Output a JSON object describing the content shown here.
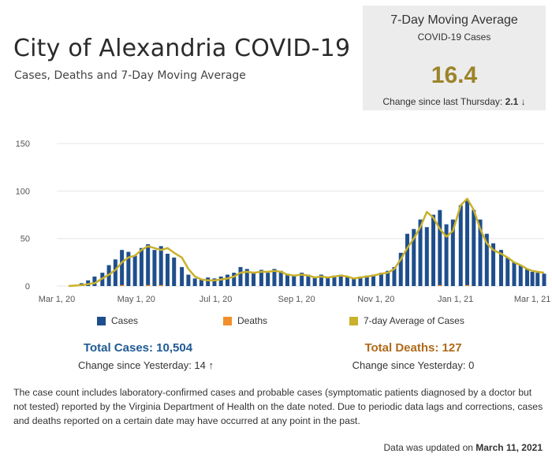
{
  "header": {
    "title": "City of Alexandria COVID-19",
    "subtitle": "Cases, Deaths  and 7-Day Moving Average"
  },
  "kpi": {
    "title": "7-Day Moving Average",
    "subtitle": "COVID-19 Cases",
    "value": "16.4",
    "change_label": "Change since last Thursday:",
    "change_value": "2.1",
    "change_arrow": "↓"
  },
  "legend": {
    "cases": "Cases",
    "deaths": "Deaths",
    "avg": "7-day Average of Cases"
  },
  "totals": {
    "cases_label": "Total Cases: 10,504",
    "cases_change": "Change since Yesterday: 14",
    "cases_arrow": "↑",
    "deaths_label": "Total Deaths: 127",
    "deaths_change": "Change since Yesterday: 0"
  },
  "footnote": "The case count includes laboratory-confirmed cases and probable cases (symptomatic patients diagnosed by a doctor but not tested) reported by the Virginia Department of Health on the date noted. Due to periodic data lags and corrections, cases and deaths reported on a certain date may have occurred at any point in the past.",
  "updated": {
    "label": "Data was updated on",
    "date": "March 11, 2021"
  },
  "colors": {
    "cases": "#1f4e8c",
    "deaths": "#f28e2b",
    "avg": "#c9b12b",
    "kpi_value": "#9c8429",
    "cases_total": "#1f5a94",
    "deaths_total": "#b06a1a",
    "raw_bar": "#c8c8c8"
  },
  "chart_data": {
    "type": "bar",
    "x_type": "date",
    "x_start": "2020-03-01",
    "x_end": "2021-03-10",
    "x_ticks": [
      {
        "date": "2020-03-01",
        "label": "Mar 1, 20"
      },
      {
        "date": "2020-05-01",
        "label": "May 1, 20"
      },
      {
        "date": "2020-07-01",
        "label": "Jul 1, 20"
      },
      {
        "date": "2020-09-01",
        "label": "Sep 1, 20"
      },
      {
        "date": "2020-11-01",
        "label": "Nov 1, 20"
      },
      {
        "date": "2021-01-01",
        "label": "Jan 1, 21"
      },
      {
        "date": "2021-03-01",
        "label": "Mar 1, 21"
      }
    ],
    "ylim": [
      0,
      170
    ],
    "y_ticks": [
      0,
      50,
      100,
      150
    ],
    "grid": true,
    "legend_position": "bottom",
    "series": [
      {
        "name": "Cases",
        "kind": "bar",
        "points": [
          [
            "2020-03-15",
            1
          ],
          [
            "2020-03-20",
            3
          ],
          [
            "2020-03-25",
            6
          ],
          [
            "2020-03-30",
            10
          ],
          [
            "2020-04-05",
            14
          ],
          [
            "2020-04-10",
            22
          ],
          [
            "2020-04-15",
            28
          ],
          [
            "2020-04-20",
            38
          ],
          [
            "2020-04-25",
            36
          ],
          [
            "2020-04-30",
            32
          ],
          [
            "2020-05-05",
            40
          ],
          [
            "2020-05-10",
            44
          ],
          [
            "2020-05-15",
            38
          ],
          [
            "2020-05-20",
            42
          ],
          [
            "2020-05-25",
            34
          ],
          [
            "2020-05-30",
            30
          ],
          [
            "2020-06-05",
            20
          ],
          [
            "2020-06-10",
            12
          ],
          [
            "2020-06-15",
            8
          ],
          [
            "2020-06-20",
            7
          ],
          [
            "2020-06-25",
            9
          ],
          [
            "2020-06-30",
            8
          ],
          [
            "2020-07-05",
            10
          ],
          [
            "2020-07-10",
            12
          ],
          [
            "2020-07-15",
            14
          ],
          [
            "2020-07-20",
            20
          ],
          [
            "2020-07-25",
            18
          ],
          [
            "2020-07-30",
            15
          ],
          [
            "2020-08-05",
            17
          ],
          [
            "2020-08-10",
            14
          ],
          [
            "2020-08-15",
            18
          ],
          [
            "2020-08-20",
            16
          ],
          [
            "2020-08-25",
            13
          ],
          [
            "2020-08-30",
            12
          ],
          [
            "2020-09-05",
            14
          ],
          [
            "2020-09-10",
            12
          ],
          [
            "2020-09-15",
            10
          ],
          [
            "2020-09-20",
            12
          ],
          [
            "2020-09-25",
            10
          ],
          [
            "2020-09-30",
            11
          ],
          [
            "2020-10-05",
            12
          ],
          [
            "2020-10-10",
            10
          ],
          [
            "2020-10-15",
            9
          ],
          [
            "2020-10-20",
            10
          ],
          [
            "2020-10-25",
            11
          ],
          [
            "2020-10-30",
            12
          ],
          [
            "2020-11-05",
            14
          ],
          [
            "2020-11-10",
            16
          ],
          [
            "2020-11-15",
            20
          ],
          [
            "2020-11-20",
            35
          ],
          [
            "2020-11-25",
            55
          ],
          [
            "2020-11-30",
            60
          ],
          [
            "2020-12-05",
            70
          ],
          [
            "2020-12-10",
            62
          ],
          [
            "2020-12-15",
            75
          ],
          [
            "2020-12-20",
            80
          ],
          [
            "2020-12-25",
            65
          ],
          [
            "2020-12-30",
            70
          ],
          [
            "2021-01-05",
            85
          ],
          [
            "2021-01-10",
            90
          ],
          [
            "2021-01-15",
            80
          ],
          [
            "2021-01-20",
            70
          ],
          [
            "2021-01-25",
            55
          ],
          [
            "2021-01-30",
            45
          ],
          [
            "2021-02-05",
            38
          ],
          [
            "2021-02-10",
            30
          ],
          [
            "2021-02-15",
            25
          ],
          [
            "2021-02-20",
            22
          ],
          [
            "2021-02-25",
            18
          ],
          [
            "2021-03-01",
            15
          ],
          [
            "2021-03-05",
            14
          ],
          [
            "2021-03-10",
            13
          ]
        ]
      },
      {
        "name": "Deaths",
        "kind": "bar",
        "points": [
          [
            "2020-04-20",
            1
          ],
          [
            "2020-05-10",
            1
          ],
          [
            "2020-05-20",
            1
          ],
          [
            "2020-12-20",
            1
          ],
          [
            "2021-01-10",
            1
          ]
        ]
      },
      {
        "name": "7-day Average of Cases",
        "kind": "line",
        "points": [
          [
            "2020-03-10",
            0
          ],
          [
            "2020-03-20",
            1
          ],
          [
            "2020-03-30",
            3
          ],
          [
            "2020-04-05",
            8
          ],
          [
            "2020-04-10",
            12
          ],
          [
            "2020-04-15",
            17
          ],
          [
            "2020-04-20",
            25
          ],
          [
            "2020-04-25",
            30
          ],
          [
            "2020-04-30",
            32
          ],
          [
            "2020-05-05",
            38
          ],
          [
            "2020-05-10",
            42
          ],
          [
            "2020-05-15",
            40
          ],
          [
            "2020-05-20",
            38
          ],
          [
            "2020-05-25",
            40
          ],
          [
            "2020-05-30",
            35
          ],
          [
            "2020-06-05",
            30
          ],
          [
            "2020-06-10",
            18
          ],
          [
            "2020-06-15",
            10
          ],
          [
            "2020-06-20",
            7
          ],
          [
            "2020-06-25",
            6
          ],
          [
            "2020-06-30",
            6
          ],
          [
            "2020-07-05",
            7
          ],
          [
            "2020-07-10",
            8
          ],
          [
            "2020-07-15",
            10
          ],
          [
            "2020-07-20",
            14
          ],
          [
            "2020-07-25",
            15
          ],
          [
            "2020-07-30",
            14
          ],
          [
            "2020-08-05",
            15
          ],
          [
            "2020-08-10",
            15
          ],
          [
            "2020-08-15",
            16
          ],
          [
            "2020-08-20",
            15
          ],
          [
            "2020-08-25",
            12
          ],
          [
            "2020-08-30",
            11
          ],
          [
            "2020-09-05",
            12
          ],
          [
            "2020-09-10",
            11
          ],
          [
            "2020-09-15",
            9
          ],
          [
            "2020-09-20",
            10
          ],
          [
            "2020-09-25",
            9
          ],
          [
            "2020-09-30",
            10
          ],
          [
            "2020-10-05",
            11
          ],
          [
            "2020-10-10",
            10
          ],
          [
            "2020-10-15",
            8
          ],
          [
            "2020-10-20",
            9
          ],
          [
            "2020-10-25",
            10
          ],
          [
            "2020-10-30",
            11
          ],
          [
            "2020-11-05",
            13
          ],
          [
            "2020-11-10",
            14
          ],
          [
            "2020-11-15",
            18
          ],
          [
            "2020-11-20",
            28
          ],
          [
            "2020-11-25",
            40
          ],
          [
            "2020-11-30",
            50
          ],
          [
            "2020-12-05",
            62
          ],
          [
            "2020-12-10",
            78
          ],
          [
            "2020-12-15",
            72
          ],
          [
            "2020-12-20",
            60
          ],
          [
            "2020-12-25",
            52
          ],
          [
            "2020-12-30",
            58
          ],
          [
            "2021-01-05",
            85
          ],
          [
            "2021-01-10",
            92
          ],
          [
            "2021-01-15",
            80
          ],
          [
            "2021-01-20",
            60
          ],
          [
            "2021-01-25",
            45
          ],
          [
            "2021-01-30",
            38
          ],
          [
            "2021-02-05",
            34
          ],
          [
            "2021-02-10",
            30
          ],
          [
            "2021-02-15",
            25
          ],
          [
            "2021-02-20",
            22
          ],
          [
            "2021-02-25",
            18
          ],
          [
            "2021-03-01",
            16
          ],
          [
            "2021-03-05",
            15
          ],
          [
            "2021-03-10",
            14
          ]
        ]
      }
    ]
  }
}
